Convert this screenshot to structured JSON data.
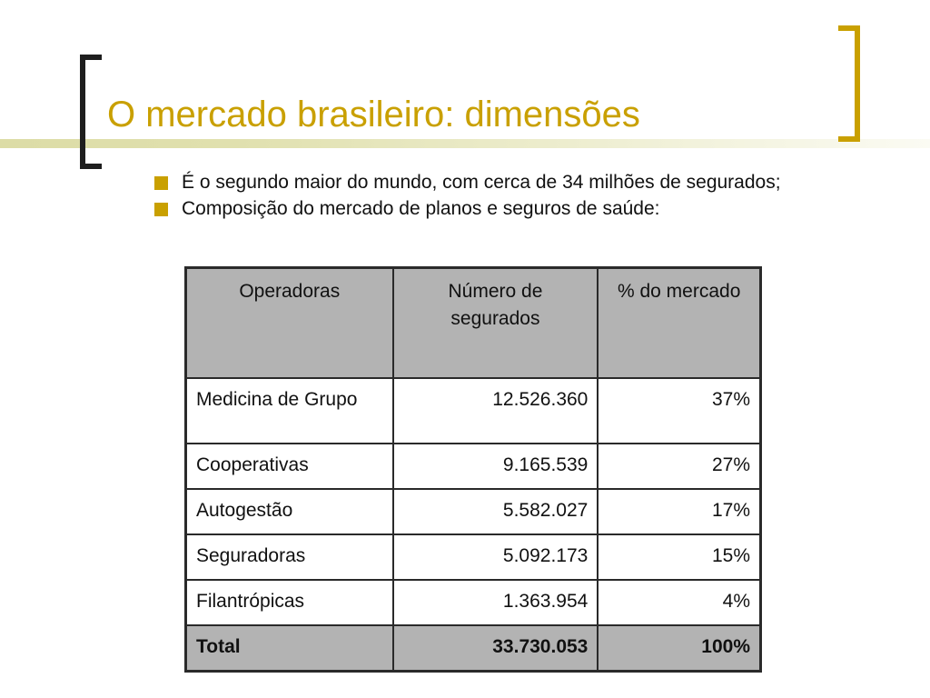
{
  "slide": {
    "title": "O mercado brasileiro: dimensões",
    "bullets": [
      "É o segundo maior do mundo, com cerca de 34 milhões de segurados;",
      "Composição do mercado de planos e seguros de saúde:"
    ]
  },
  "colors": {
    "accent": "#c9a000",
    "table_header_bg": "#b3b3b3",
    "bracket_left": "#1e1e1e"
  },
  "table": {
    "headers": [
      "Operadoras",
      "Número de segurados",
      "% do mercado"
    ],
    "rows": [
      {
        "operadora": "Medicina de Grupo",
        "segurados": "12.526.360",
        "percent": "37%"
      },
      {
        "operadora": "Cooperativas",
        "segurados": "9.165.539",
        "percent": "27%"
      },
      {
        "operadora": "Autogestão",
        "segurados": "5.582.027",
        "percent": "17%"
      },
      {
        "operadora": "Seguradoras",
        "segurados": "5.092.173",
        "percent": "15%"
      },
      {
        "operadora": "Filantrópicas",
        "segurados": "1.363.954",
        "percent": "4%"
      }
    ],
    "total": {
      "operadora": "Total",
      "segurados": "33.730.053",
      "percent": "100%"
    }
  }
}
